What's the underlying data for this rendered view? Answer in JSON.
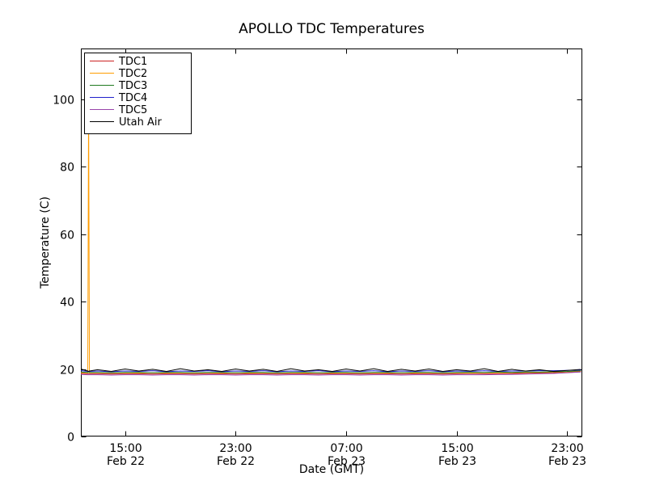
{
  "chart_data": {
    "type": "line",
    "title": "APOLLO TDC Temperatures",
    "xlabel": "Date (GMT)",
    "ylabel": "Temperature (C)",
    "x_unit": "hours since Feb 22 00:00 (GMT)",
    "xlim": [
      11.8,
      48.1
    ],
    "ylim": [
      0,
      115
    ],
    "grid": false,
    "legend_position": "upper left",
    "axes": {
      "background": "#ffffff",
      "border_color": "#000000",
      "tick_color": "#000000"
    },
    "xticks": {
      "positions": [
        15,
        23,
        31,
        39,
        47
      ],
      "labels": [
        [
          "15:00",
          "Feb 22"
        ],
        [
          "23:00",
          "Feb 22"
        ],
        [
          "07:00",
          "Feb 23"
        ],
        [
          "15:00",
          "Feb 23"
        ],
        [
          "23:00",
          "Feb 23"
        ]
      ]
    },
    "yticks": {
      "positions": [
        0,
        20,
        40,
        60,
        80,
        100
      ],
      "labels": [
        "0",
        "20",
        "40",
        "60",
        "80",
        "100"
      ]
    },
    "x": [
      11.8,
      12.3,
      12.36,
      12.42,
      13,
      14,
      15,
      16,
      17,
      18,
      19,
      20,
      21,
      22,
      23,
      24,
      25,
      26,
      27,
      28,
      29,
      30,
      31,
      32,
      33,
      34,
      35,
      36,
      37,
      38,
      39,
      40,
      41,
      42,
      43,
      44,
      45,
      46,
      47,
      48
    ],
    "series": [
      {
        "name": "TDC1",
        "color": "#cc2222",
        "values": [
          18.7,
          18.6,
          18.6,
          18.6,
          18.6,
          18.5,
          18.6,
          18.6,
          18.5,
          18.6,
          18.6,
          18.5,
          18.6,
          18.6,
          18.5,
          18.6,
          18.6,
          18.5,
          18.6,
          18.6,
          18.5,
          18.6,
          18.6,
          18.5,
          18.6,
          18.6,
          18.5,
          18.6,
          18.6,
          18.5,
          18.6,
          18.7,
          18.6,
          18.6,
          18.7,
          18.7,
          18.8,
          18.9,
          19.1,
          19.3
        ]
      },
      {
        "name": "TDC2",
        "color": "#ff9c00",
        "values": [
          18.9,
          18.9,
          100.0,
          18.9,
          18.9,
          18.8,
          18.9,
          18.8,
          18.9,
          18.8,
          18.9,
          18.8,
          18.9,
          18.8,
          18.9,
          18.8,
          18.9,
          18.8,
          18.9,
          18.8,
          18.9,
          18.8,
          18.9,
          18.8,
          18.9,
          18.8,
          18.9,
          18.8,
          18.9,
          18.8,
          18.9,
          18.8,
          18.9,
          18.9,
          18.9,
          19.0,
          19.0,
          19.1,
          19.2,
          19.4
        ]
      },
      {
        "name": "TDC3",
        "color": "#1f7a1f",
        "values": [
          19.1,
          19.0,
          19.0,
          19.0,
          19.0,
          18.9,
          19.0,
          19.0,
          18.9,
          19.0,
          19.0,
          18.9,
          19.0,
          19.0,
          18.9,
          19.0,
          19.0,
          18.9,
          19.0,
          19.0,
          18.9,
          19.0,
          19.0,
          18.9,
          19.0,
          19.0,
          18.9,
          19.0,
          19.0,
          18.9,
          19.0,
          19.0,
          19.0,
          19.1,
          19.0,
          19.1,
          19.1,
          19.2,
          19.3,
          19.5
        ]
      },
      {
        "name": "TDC4",
        "color": "#2020cc",
        "values": [
          19.5,
          19.3,
          19.3,
          19.3,
          19.4,
          19.2,
          19.4,
          19.3,
          19.5,
          19.2,
          19.4,
          19.3,
          19.5,
          19.2,
          19.4,
          19.3,
          19.5,
          19.2,
          19.4,
          19.3,
          19.5,
          19.2,
          19.4,
          19.3,
          19.5,
          19.2,
          19.4,
          19.3,
          19.5,
          19.2,
          19.4,
          19.3,
          19.5,
          19.3,
          19.4,
          19.4,
          19.5,
          19.5,
          19.6,
          19.7
        ]
      },
      {
        "name": "TDC5",
        "color": "#9944aa",
        "values": [
          18.4,
          18.3,
          18.3,
          18.3,
          18.3,
          18.2,
          18.3,
          18.3,
          18.2,
          18.3,
          18.3,
          18.2,
          18.3,
          18.3,
          18.2,
          18.3,
          18.3,
          18.2,
          18.3,
          18.3,
          18.2,
          18.3,
          18.3,
          18.2,
          18.3,
          18.3,
          18.2,
          18.3,
          18.3,
          18.2,
          18.3,
          18.3,
          18.3,
          18.4,
          18.4,
          18.5,
          18.6,
          18.7,
          18.9,
          19.1
        ]
      },
      {
        "name": "Utah Air",
        "color": "#000000",
        "values": [
          20.0,
          19.4,
          19.3,
          19.4,
          19.8,
          19.3,
          20.0,
          19.4,
          19.9,
          19.3,
          20.1,
          19.4,
          19.8,
          19.3,
          20.0,
          19.4,
          19.9,
          19.3,
          20.1,
          19.4,
          19.8,
          19.3,
          20.0,
          19.4,
          20.1,
          19.3,
          19.9,
          19.4,
          20.0,
          19.3,
          19.8,
          19.4,
          20.1,
          19.3,
          19.9,
          19.4,
          19.8,
          19.3,
          19.6,
          19.9
        ]
      }
    ]
  }
}
